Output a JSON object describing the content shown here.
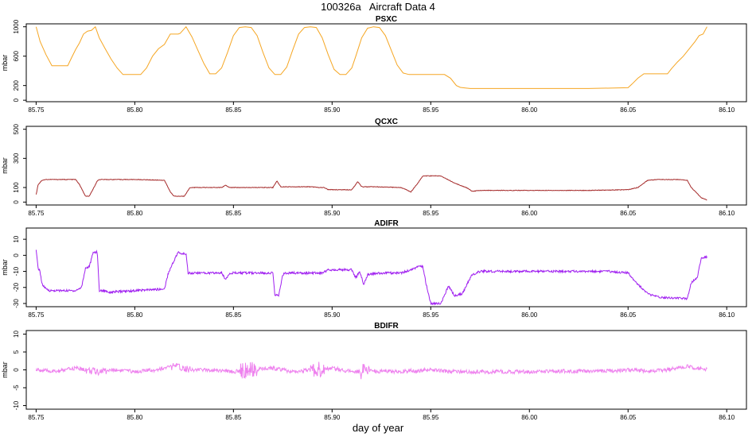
{
  "figure": {
    "title": "100326a   Aircraft Data 4",
    "xlabel": "day of year"
  },
  "chart_data": [
    {
      "type": "line",
      "title": "PSXC",
      "ylabel": "mbar",
      "xlim": [
        85.745,
        86.11
      ],
      "ylim": [
        -20,
        1040
      ],
      "xticks": [
        85.75,
        85.8,
        85.85,
        85.9,
        85.95,
        86.0,
        86.05,
        86.1
      ],
      "xtick_labels": [
        "85.75",
        "85.80",
        "85.85",
        "85.90",
        "85.95",
        "86.00",
        "86.05",
        "86.10"
      ],
      "yticks": [
        0,
        200,
        600,
        1000
      ],
      "ytick_labels": [
        "0",
        "200",
        "600",
        "1000"
      ],
      "series": [
        {
          "color": "#F5A623",
          "x": [
            85.75,
            85.752,
            85.755,
            85.758,
            85.76,
            85.763,
            85.766,
            85.768,
            85.77,
            85.772,
            85.774,
            85.776,
            85.778,
            85.78,
            85.782,
            85.785,
            85.788,
            85.791,
            85.794,
            85.797,
            85.8,
            85.803,
            85.806,
            85.809,
            85.812,
            85.815,
            85.818,
            85.82,
            85.822,
            85.823,
            85.826,
            85.829,
            85.832,
            85.835,
            85.838,
            85.841,
            85.844,
            85.847,
            85.85,
            85.853,
            85.856,
            85.859,
            85.862,
            85.865,
            85.868,
            85.871,
            85.874,
            85.877,
            85.88,
            85.883,
            85.886,
            85.889,
            85.892,
            85.895,
            85.898,
            85.901,
            85.904,
            85.907,
            85.91,
            85.912,
            85.915,
            85.918,
            85.921,
            85.924,
            85.927,
            85.93,
            85.933,
            85.936,
            85.939,
            85.942,
            85.945,
            85.948,
            85.951,
            85.954,
            85.957,
            85.96,
            85.963,
            85.965,
            85.968,
            85.97,
            85.975,
            86.0,
            86.03,
            86.05,
            86.052,
            86.055,
            86.058,
            86.06,
            86.065,
            86.07,
            86.072,
            86.075,
            86.078,
            86.081,
            86.084,
            86.086,
            86.088,
            86.09
          ],
          "y": [
            1000,
            800,
            620,
            470,
            470,
            470,
            470,
            580,
            690,
            780,
            900,
            940,
            950,
            1000,
            850,
            700,
            560,
            440,
            350,
            350,
            350,
            350,
            440,
            600,
            700,
            760,
            900,
            900,
            900,
            910,
            1000,
            860,
            680,
            500,
            360,
            360,
            440,
            650,
            880,
            990,
            1000,
            990,
            880,
            650,
            440,
            350,
            350,
            450,
            680,
            900,
            990,
            1000,
            990,
            850,
            620,
            420,
            350,
            350,
            440,
            600,
            850,
            980,
            1000,
            990,
            880,
            680,
            480,
            370,
            350,
            350,
            350,
            350,
            350,
            350,
            350,
            300,
            200,
            175,
            165,
            160,
            160,
            160,
            160,
            170,
            220,
            300,
            360,
            360,
            360,
            360,
            430,
            520,
            600,
            700,
            800,
            880,
            900,
            1000
          ]
        }
      ]
    },
    {
      "type": "line",
      "title": "QCXC",
      "ylabel": "mbar",
      "xlim": [
        85.745,
        86.11
      ],
      "ylim": [
        -20,
        520
      ],
      "xticks": [
        85.75,
        85.8,
        85.85,
        85.9,
        85.95,
        86.0,
        86.05,
        86.1
      ],
      "xtick_labels": [
        "85.75",
        "85.80",
        "85.85",
        "85.90",
        "85.95",
        "86.00",
        "86.05",
        "86.10"
      ],
      "yticks": [
        0,
        100,
        300,
        500
      ],
      "ytick_labels": [
        "0",
        "100",
        "300",
        "500"
      ],
      "series": [
        {
          "color": "#A52A2A",
          "x": [
            85.75,
            85.751,
            85.753,
            85.755,
            85.77,
            85.772,
            85.775,
            85.777,
            85.78,
            85.781,
            85.782,
            85.785,
            85.8,
            85.815,
            85.818,
            85.82,
            85.822,
            85.825,
            85.828,
            85.844,
            85.846,
            85.848,
            85.87,
            85.872,
            85.874,
            85.89,
            85.893,
            85.896,
            85.898,
            85.91,
            85.913,
            85.915,
            85.918,
            85.92,
            85.935,
            85.94,
            85.944,
            85.946,
            85.955,
            85.958,
            85.962,
            85.968,
            85.971,
            85.975,
            86.0,
            86.03,
            86.05,
            86.055,
            86.06,
            86.065,
            86.075,
            86.08,
            86.082,
            86.085,
            86.087,
            86.09
          ],
          "y": [
            50,
            120,
            150,
            155,
            155,
            120,
            40,
            40,
            120,
            145,
            155,
            155,
            155,
            150,
            70,
            40,
            40,
            40,
            100,
            100,
            115,
            100,
            100,
            145,
            105,
            105,
            100,
            100,
            85,
            85,
            140,
            105,
            105,
            105,
            100,
            70,
            140,
            180,
            180,
            160,
            130,
            100,
            75,
            80,
            80,
            80,
            85,
            100,
            150,
            155,
            155,
            150,
            100,
            60,
            30,
            15
          ]
        }
      ]
    },
    {
      "type": "line",
      "title": "ADIFR",
      "ylabel": "mbar",
      "xlim": [
        85.745,
        86.11
      ],
      "ylim": [
        -32,
        17
      ],
      "xticks": [
        85.75,
        85.8,
        85.85,
        85.9,
        85.95,
        86.0,
        86.05,
        86.1
      ],
      "xtick_labels": [
        "85.75",
        "85.80",
        "85.85",
        "85.90",
        "85.95",
        "86.00",
        "86.05",
        "86.10"
      ],
      "yticks": [
        -30,
        -20,
        -10,
        0,
        10
      ],
      "ytick_labels": [
        "-30",
        "-20",
        "-10",
        "0",
        "10"
      ],
      "series": [
        {
          "color": "#A020F0",
          "x": [
            85.75,
            85.751,
            85.752,
            85.753,
            85.755,
            85.757,
            85.77,
            85.773,
            85.775,
            85.777,
            85.779,
            85.781,
            85.782,
            85.785,
            85.787,
            85.8,
            85.815,
            85.817,
            85.82,
            85.822,
            85.823,
            85.826,
            85.827,
            85.83,
            85.844,
            85.846,
            85.848,
            85.86,
            85.87,
            85.871,
            85.873,
            85.875,
            85.877,
            85.895,
            85.898,
            85.91,
            85.912,
            85.914,
            85.916,
            85.918,
            85.925,
            85.935,
            85.94,
            85.944,
            85.946,
            85.948,
            85.95,
            85.955,
            85.957,
            85.959,
            85.962,
            85.966,
            85.968,
            85.971,
            85.975,
            86.0,
            86.04,
            86.05,
            86.055,
            86.06,
            86.065,
            86.08,
            86.082,
            86.085,
            86.087,
            86.09
          ],
          "y": [
            3,
            -8,
            -10,
            -18,
            -21,
            -22,
            -22,
            -20,
            -8,
            -7,
            2,
            2,
            -22,
            -22,
            -23,
            -22,
            -21,
            -11,
            -3,
            2,
            1,
            1,
            -11,
            -11,
            -11,
            -15,
            -11,
            -11,
            -11,
            -25,
            -25,
            -12,
            -11,
            -11,
            -9,
            -9,
            -14,
            -10,
            -18,
            -12,
            -11,
            -11,
            -9,
            -7,
            -7,
            -20,
            -30,
            -30,
            -25,
            -19,
            -25,
            -24,
            -19,
            -12,
            -10,
            -10,
            -10,
            -11,
            -18,
            -24,
            -26,
            -27,
            -17,
            -14,
            -2,
            -1
          ]
        }
      ]
    },
    {
      "type": "line",
      "title": "BDIFR",
      "ylabel": "mbar",
      "xlim": [
        85.745,
        86.11
      ],
      "ylim": [
        -11,
        11
      ],
      "xticks": [
        85.75,
        85.8,
        85.85,
        85.9,
        85.95,
        86.0,
        86.05,
        86.1
      ],
      "xtick_labels": [
        "85.75",
        "85.80",
        "85.85",
        "85.90",
        "85.95",
        "86.00",
        "86.05",
        "86.10"
      ],
      "yticks": [
        -10,
        -5,
        0,
        5,
        10
      ],
      "ytick_labels": [
        "-10",
        "-5",
        "0",
        "5",
        "10"
      ],
      "series": [
        {
          "color": "#EE82EE",
          "x": [
            85.75,
            85.76,
            85.77,
            85.78,
            85.79,
            85.8,
            85.81,
            85.82,
            85.83,
            85.84,
            85.85,
            85.86,
            85.87,
            85.88,
            85.89,
            85.9,
            85.91,
            85.92,
            85.93,
            85.94,
            85.95,
            85.96,
            85.97,
            85.98,
            85.99,
            86.0,
            86.01,
            86.02,
            86.03,
            86.04,
            86.05,
            86.06,
            86.07,
            86.08,
            86.09
          ],
          "y": [
            0,
            -0.5,
            0.5,
            -0.5,
            0,
            -0.5,
            0,
            1,
            0,
            0,
            -0.5,
            0,
            0.5,
            -0.5,
            0,
            0.5,
            -0.5,
            -0.3,
            -0.5,
            -0.3,
            0,
            -0.5,
            -0.5,
            -0.5,
            -0.5,
            -0.5,
            -0.5,
            -0.3,
            -0.5,
            -0.3,
            0,
            -0.3,
            0,
            1,
            0
          ]
        }
      ]
    }
  ]
}
